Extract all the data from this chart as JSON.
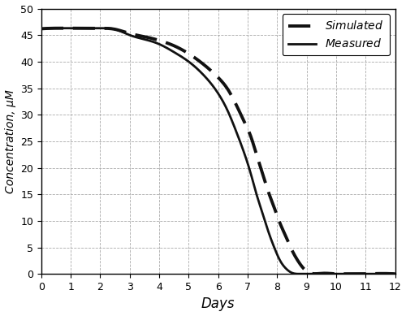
{
  "title": "",
  "xlabel": "Days",
  "ylabel": "Concentration, μM",
  "xlim": [
    0,
    12
  ],
  "ylim": [
    0,
    50
  ],
  "xticks": [
    0,
    1,
    2,
    3,
    4,
    5,
    6,
    7,
    8,
    9,
    10,
    11,
    12
  ],
  "yticks": [
    0,
    5,
    10,
    15,
    20,
    25,
    30,
    35,
    40,
    45,
    50
  ],
  "simulated_x": [
    0,
    0.5,
    1.0,
    1.5,
    2.0,
    2.5,
    3.0,
    3.5,
    4.0,
    4.5,
    5.0,
    5.5,
    6.0,
    6.3,
    6.6,
    6.9,
    7.1,
    7.3,
    7.5,
    7.7,
    7.9,
    8.1,
    8.3,
    8.5,
    8.7,
    9.0,
    9.5,
    10.0,
    11.0,
    12.0
  ],
  "simulated_y": [
    46.2,
    46.3,
    46.3,
    46.3,
    46.3,
    46.1,
    45.3,
    44.7,
    44.0,
    43.0,
    41.5,
    39.5,
    37.0,
    35.0,
    32.0,
    28.5,
    26.0,
    22.5,
    19.0,
    15.5,
    12.5,
    9.5,
    7.0,
    4.5,
    2.5,
    0.5,
    0.1,
    0.0,
    0.0,
    0.0
  ],
  "measured_x": [
    0,
    0.5,
    1.0,
    1.5,
    2.0,
    2.5,
    3.0,
    3.5,
    4.0,
    4.5,
    5.0,
    5.5,
    6.0,
    6.3,
    6.6,
    6.9,
    7.1,
    7.3,
    7.5,
    7.7,
    7.9,
    8.1,
    8.3,
    8.5,
    8.7,
    9.0,
    9.5,
    10.0,
    11.0,
    12.0
  ],
  "measured_y": [
    46.2,
    46.3,
    46.3,
    46.3,
    46.3,
    46.1,
    45.0,
    44.2,
    43.3,
    41.8,
    40.0,
    37.5,
    34.0,
    31.0,
    27.0,
    22.5,
    19.0,
    15.0,
    11.5,
    8.0,
    5.0,
    2.5,
    1.0,
    0.2,
    0.0,
    0.0,
    0.0,
    0.0,
    0.0,
    0.0
  ],
  "simulated_color": "#111111",
  "measured_color": "#111111",
  "simulated_lw": 2.8,
  "measured_lw": 2.0,
  "legend_simulated": "Simulated",
  "legend_measured": "Measured",
  "background_color": "#ffffff",
  "grid_color": "#aaaaaa"
}
